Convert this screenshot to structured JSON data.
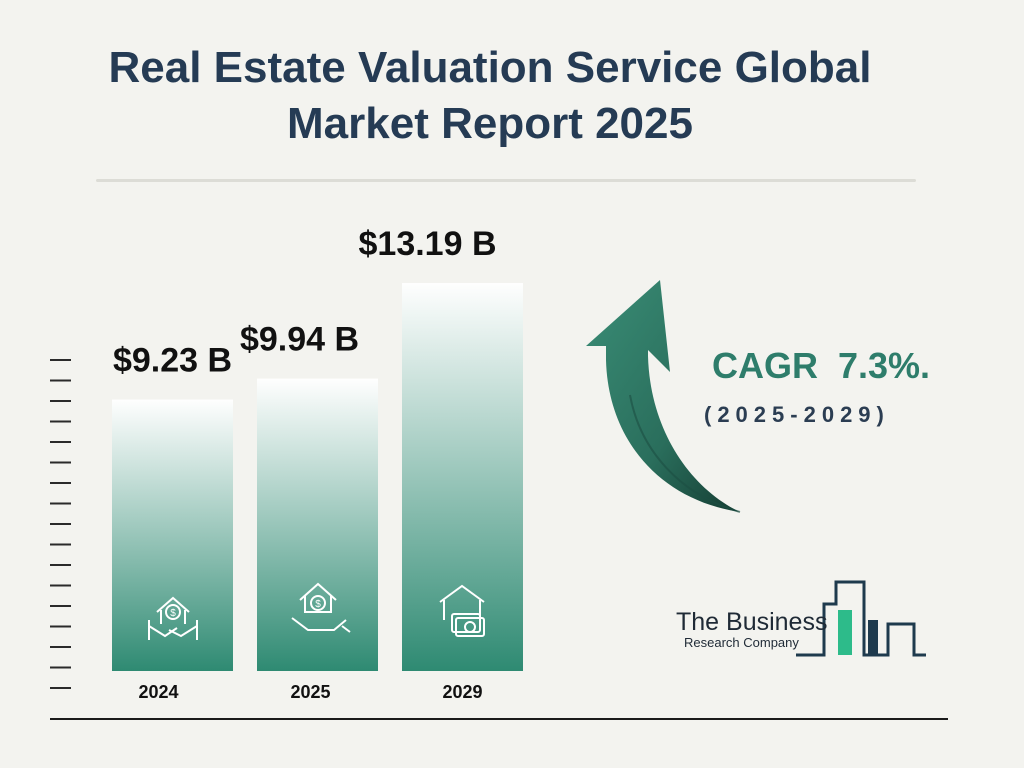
{
  "title": {
    "line1": "Real Estate Valuation Service Global",
    "line2": "Market Report 2025"
  },
  "cagr": {
    "label": "CAGR  7.3%.",
    "period": "(2025-2029)"
  },
  "logo": {
    "line1": "The Business",
    "line2": "Research Company"
  },
  "colors": {
    "title": "#253b54",
    "bar_top": "#ffffff",
    "bar_bottom": "#2e8a72",
    "cagr": "#2e7d6b",
    "arrow": "#2f7d68"
  },
  "icons": [
    "house-dollar-handshake-icon",
    "house-dollar-hand-icon",
    "house-cash-icon"
  ],
  "chart_data": {
    "type": "bar",
    "categories": [
      "2024",
      "2025",
      "2029"
    ],
    "values": [
      9.23,
      9.94,
      13.19
    ],
    "value_labels": [
      "$9.23 B",
      "$9.94 B",
      "$13.19 B"
    ],
    "title": "Real Estate Valuation Service Global Market Report 2025",
    "xlabel": "",
    "ylabel": "",
    "unit": "$ B",
    "grid": false
  }
}
